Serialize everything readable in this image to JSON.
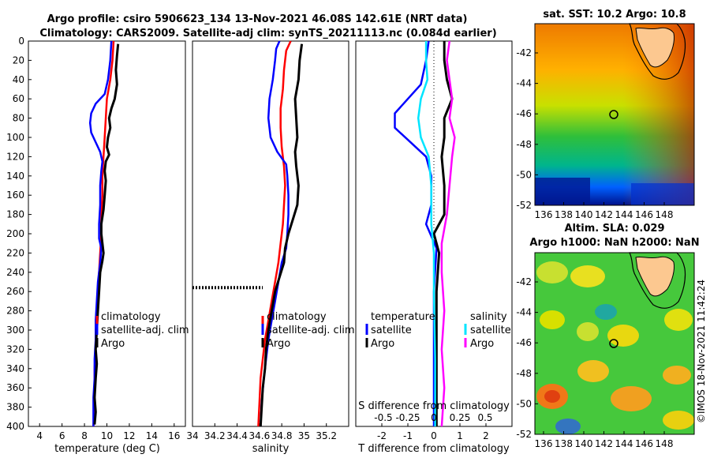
{
  "titles": {
    "line1": "Argo profile: csiro 5906623_134 13-Nov-2021 46.08S 142.61E (NRT data)",
    "line2": "Climatology: CARS2009. Satellite-adj clim: synTS_20211113.nc (0.084d earlier)"
  },
  "colors": {
    "climatology": "#ff0000",
    "satellite": "#0000ff",
    "argo": "#000000",
    "sat_salinity": "#00e5ff",
    "argo_salinity": "#ff00ff"
  },
  "chart_data": [
    {
      "type": "line",
      "id": "temperature",
      "xlabel": "temperature (deg C)",
      "ylabel": "",
      "xlim": [
        3,
        17
      ],
      "ylim": [
        400,
        0
      ],
      "xticks": [
        4,
        6,
        8,
        10,
        12,
        14,
        16
      ],
      "yticks": [
        0,
        20,
        40,
        60,
        80,
        100,
        120,
        140,
        160,
        180,
        200,
        220,
        240,
        260,
        280,
        300,
        320,
        340,
        360,
        380,
        400
      ],
      "legend": [
        "climatology",
        "satellite-adj. clim",
        "Argo"
      ],
      "series": [
        {
          "name": "climatology",
          "color": "#ff0000",
          "points": [
            [
              10.6,
              0
            ],
            [
              10.5,
              20
            ],
            [
              10.3,
              40
            ],
            [
              10.0,
              60
            ],
            [
              9.9,
              80
            ],
            [
              9.8,
              100
            ],
            [
              9.7,
              120
            ],
            [
              9.6,
              140
            ],
            [
              9.6,
              160
            ],
            [
              9.5,
              180
            ],
            [
              9.5,
              200
            ],
            [
              9.4,
              220
            ],
            [
              9.3,
              240
            ],
            [
              9.2,
              260
            ],
            [
              9.1,
              280
            ],
            [
              9.0,
              300
            ],
            [
              9.0,
              320
            ],
            [
              8.9,
              340
            ],
            [
              8.9,
              360
            ],
            [
              8.9,
              380
            ],
            [
              8.8,
              400
            ]
          ]
        },
        {
          "name": "satellite-adj. clim",
          "color": "#0000ff",
          "points": [
            [
              10.4,
              0
            ],
            [
              10.3,
              20
            ],
            [
              10.1,
              40
            ],
            [
              9.8,
              55
            ],
            [
              9.0,
              65
            ],
            [
              8.6,
              75
            ],
            [
              8.5,
              85
            ],
            [
              8.6,
              95
            ],
            [
              9.0,
              105
            ],
            [
              9.4,
              115
            ],
            [
              9.6,
              125
            ],
            [
              9.5,
              135
            ],
            [
              9.4,
              150
            ],
            [
              9.4,
              170
            ],
            [
              9.3,
              190
            ],
            [
              9.3,
              205
            ],
            [
              9.5,
              215
            ],
            [
              9.4,
              230
            ],
            [
              9.2,
              250
            ],
            [
              9.1,
              270
            ],
            [
              9.0,
              290
            ],
            [
              9.0,
              310
            ],
            [
              8.9,
              330
            ],
            [
              8.9,
              350
            ],
            [
              8.8,
              370
            ],
            [
              8.8,
              400
            ]
          ]
        },
        {
          "name": "Argo",
          "color": "#000000",
          "points": [
            [
              11.0,
              3
            ],
            [
              10.9,
              15
            ],
            [
              10.8,
              30
            ],
            [
              10.9,
              45
            ],
            [
              10.7,
              60
            ],
            [
              10.4,
              70
            ],
            [
              10.2,
              80
            ],
            [
              10.3,
              90
            ],
            [
              10.1,
              100
            ],
            [
              10.0,
              110
            ],
            [
              10.2,
              118
            ],
            [
              9.9,
              125
            ],
            [
              9.8,
              135
            ],
            [
              9.9,
              145
            ],
            [
              9.8,
              160
            ],
            [
              9.7,
              175
            ],
            [
              9.5,
              190
            ],
            [
              9.5,
              200
            ],
            [
              9.6,
              210
            ],
            [
              9.7,
              220
            ],
            [
              9.6,
              228
            ],
            [
              9.4,
              240
            ],
            [
              9.3,
              260
            ],
            [
              9.2,
              280
            ],
            [
              9.1,
              300
            ],
            [
              9.0,
              320
            ],
            [
              9.1,
              335
            ],
            [
              9.0,
              350
            ],
            [
              8.9,
              370
            ],
            [
              9.0,
              385
            ],
            [
              8.9,
              398
            ]
          ]
        }
      ]
    },
    {
      "type": "line",
      "id": "salinity",
      "xlabel": "salinity",
      "ylabel": "",
      "xlim": [
        34,
        35.4
      ],
      "ylim": [
        400,
        0
      ],
      "xticks": [
        34,
        34.2,
        34.4,
        34.6,
        34.8,
        35,
        35.2
      ],
      "legend": [
        "climatology",
        "satellite-adj. clim",
        "Argo"
      ],
      "series": [
        {
          "name": "climatology",
          "color": "#ff0000",
          "points": [
            [
              34.88,
              0
            ],
            [
              34.84,
              10
            ],
            [
              34.82,
              30
            ],
            [
              34.81,
              50
            ],
            [
              34.79,
              70
            ],
            [
              34.79,
              90
            ],
            [
              34.8,
              110
            ],
            [
              34.82,
              130
            ],
            [
              34.83,
              150
            ],
            [
              34.82,
              170
            ],
            [
              34.81,
              190
            ],
            [
              34.79,
              210
            ],
            [
              34.77,
              230
            ],
            [
              34.74,
              250
            ],
            [
              34.71,
              270
            ],
            [
              34.68,
              290
            ],
            [
              34.65,
              310
            ],
            [
              34.63,
              330
            ],
            [
              34.61,
              350
            ],
            [
              34.6,
              375
            ],
            [
              34.59,
              400
            ]
          ]
        },
        {
          "name": "satellite-adj. clim",
          "color": "#0000ff",
          "points": [
            [
              34.78,
              0
            ],
            [
              34.75,
              8
            ],
            [
              34.74,
              20
            ],
            [
              34.72,
              40
            ],
            [
              34.69,
              60
            ],
            [
              34.68,
              80
            ],
            [
              34.7,
              100
            ],
            [
              34.76,
              115
            ],
            [
              34.84,
              128
            ],
            [
              34.85,
              140
            ],
            [
              34.86,
              160
            ],
            [
              34.86,
              180
            ],
            [
              34.85,
              200
            ],
            [
              34.84,
              215
            ],
            [
              34.8,
              230
            ],
            [
              34.77,
              250
            ],
            [
              34.74,
              270
            ],
            [
              34.71,
              290
            ],
            [
              34.68,
              310
            ],
            [
              34.66,
              330
            ],
            [
              34.64,
              350
            ],
            [
              34.62,
              375
            ],
            [
              34.61,
              400
            ]
          ]
        },
        {
          "name": "Argo",
          "color": "#000000",
          "points": [
            [
              34.98,
              3
            ],
            [
              34.96,
              20
            ],
            [
              34.95,
              40
            ],
            [
              34.92,
              60
            ],
            [
              34.93,
              80
            ],
            [
              34.94,
              100
            ],
            [
              34.92,
              115
            ],
            [
              34.93,
              130
            ],
            [
              34.95,
              150
            ],
            [
              34.94,
              170
            ],
            [
              34.9,
              185
            ],
            [
              34.86,
              200
            ],
            [
              34.83,
              215
            ],
            [
              34.82,
              230
            ],
            [
              34.78,
              245
            ],
            [
              34.74,
              260
            ],
            [
              34.71,
              280
            ],
            [
              34.68,
              300
            ],
            [
              34.66,
              320
            ],
            [
              34.65,
              340
            ],
            [
              34.63,
              360
            ],
            [
              34.62,
              380
            ],
            [
              34.61,
              400
            ]
          ]
        },
        {
          "name": "bad-data marker",
          "color": "#000000",
          "dashed": true,
          "points": [
            [
              34.0,
              256
            ],
            [
              34.63,
              256
            ]
          ]
        }
      ]
    },
    {
      "type": "line",
      "id": "difference",
      "xlabel": "T difference from climatology",
      "ylabel": "",
      "top_label": "S difference from climatology",
      "xlim": [
        -3,
        3
      ],
      "ylim": [
        400,
        0
      ],
      "xticks": [
        -2,
        -1,
        0,
        1,
        2
      ],
      "top_ticks": [
        "-0.5",
        "-0.25",
        "0",
        "0.25",
        "0.5"
      ],
      "legend_temperature": {
        "header": "temperature",
        "items": [
          "satellite",
          "Argo"
        ]
      },
      "legend_salinity": {
        "header": "salinity",
        "items": [
          "satellite",
          "Argo"
        ]
      },
      "series": [
        {
          "name": "temperature satellite",
          "color": "#0000ff",
          "points": [
            [
              -0.2,
              0
            ],
            [
              -0.3,
              20
            ],
            [
              -0.5,
              45
            ],
            [
              -1.0,
              60
            ],
            [
              -1.5,
              75
            ],
            [
              -1.5,
              90
            ],
            [
              -0.9,
              105
            ],
            [
              -0.3,
              120
            ],
            [
              -0.1,
              140
            ],
            [
              -0.1,
              170
            ],
            [
              -0.3,
              190
            ],
            [
              0.1,
              215
            ],
            [
              0,
              260
            ],
            [
              0,
              330
            ],
            [
              0,
              400
            ]
          ]
        },
        {
          "name": "temperature Argo",
          "color": "#000000",
          "points": [
            [
              0.4,
              0
            ],
            [
              0.4,
              20
            ],
            [
              0.5,
              40
            ],
            [
              0.7,
              60
            ],
            [
              0.4,
              80
            ],
            [
              0.4,
              100
            ],
            [
              0.3,
              120
            ],
            [
              0.4,
              150
            ],
            [
              0.4,
              180
            ],
            [
              0,
              200
            ],
            [
              0.2,
              220
            ],
            [
              0.1,
              260
            ],
            [
              0.1,
              330
            ],
            [
              0.1,
              400
            ]
          ]
        },
        {
          "name": "salinity satellite",
          "color": "#00e5ff",
          "points": [
            [
              -0.3,
              0
            ],
            [
              -0.3,
              20
            ],
            [
              -0.25,
              40
            ],
            [
              -0.5,
              60
            ],
            [
              -0.6,
              80
            ],
            [
              -0.5,
              100
            ],
            [
              -0.2,
              120
            ],
            [
              -0.1,
              150
            ],
            [
              -0.1,
              190
            ],
            [
              0,
              220
            ],
            [
              0,
              260
            ],
            [
              0.05,
              330
            ],
            [
              0.05,
              400
            ]
          ]
        },
        {
          "name": "salinity Argo",
          "color": "#ff00ff",
          "points": [
            [
              0.6,
              0
            ],
            [
              0.5,
              20
            ],
            [
              0.6,
              40
            ],
            [
              0.7,
              60
            ],
            [
              0.6,
              80
            ],
            [
              0.8,
              100
            ],
            [
              0.7,
              120
            ],
            [
              0.6,
              150
            ],
            [
              0.5,
              180
            ],
            [
              0.3,
              210
            ],
            [
              0.3,
              240
            ],
            [
              0.4,
              280
            ],
            [
              0.3,
              320
            ],
            [
              0.4,
              360
            ],
            [
              0.3,
              400
            ]
          ]
        }
      ]
    }
  ],
  "maps": [
    {
      "title": "sat. SST: 10.2 Argo: 10.8",
      "xticks": [
        "136",
        "138",
        "140",
        "142",
        "144",
        "146",
        "148"
      ],
      "yticks": [
        "-42",
        "-44",
        "-46",
        "-48",
        "-50",
        "-52"
      ],
      "marker_lon": 142.61,
      "marker_lat": -46.08
    },
    {
      "title_line1": "Altim. SLA: 0.029",
      "title_line2": "Argo h1000: NaN h2000: NaN",
      "xticks": [
        "136",
        "138",
        "140",
        "142",
        "144",
        "146",
        "148"
      ],
      "yticks": [
        "-42",
        "-44",
        "-46",
        "-48",
        "-50",
        "-52"
      ],
      "marker_lon": 142.61,
      "marker_lat": -46.08
    }
  ],
  "copyright": "©IMOS 18-Nov-2021 11:42:24"
}
